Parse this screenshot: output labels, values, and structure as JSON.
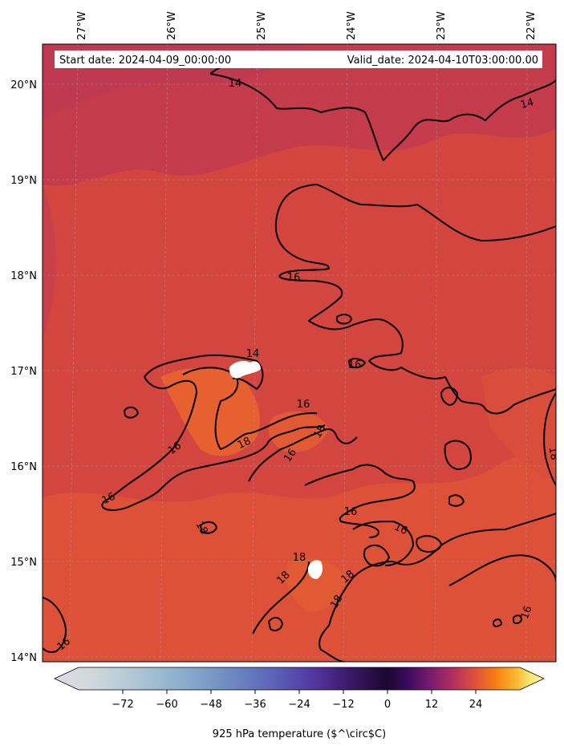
{
  "header": {
    "start_date": "Start date: 2024-04-09_00:00:00",
    "valid_date": "Valid_date: 2024-04-10T03:00:00.00"
  },
  "axes": {
    "lon_ticks": [
      "27°W",
      "26°W",
      "25°W",
      "24°W",
      "23°W",
      "22°W"
    ],
    "lat_ticks": [
      "20°N",
      "19°N",
      "18°N",
      "17°N",
      "16°N",
      "15°N",
      "14°N"
    ]
  },
  "contour_labels": [
    "14",
    "14",
    "16",
    "16",
    "16",
    "16",
    "16",
    "16",
    "16",
    "16",
    "16",
    "18",
    "18",
    "18",
    "18",
    "18",
    "18",
    "18",
    "18",
    "14",
    "16"
  ],
  "colorbar": {
    "label": "925 hPa temperature ($^\\circ$C)",
    "ticks": [
      "−72",
      "−60",
      "−48",
      "−36",
      "−24",
      "−12",
      "0",
      "12",
      "24"
    ],
    "range": [
      -84,
      36
    ],
    "colormap": "inferno-extended"
  },
  "colors": {
    "field_base": "#d2463f",
    "field_cool": "#c23c4d",
    "field_warm": "#e05a35",
    "field_hot": "#e8672e"
  }
}
